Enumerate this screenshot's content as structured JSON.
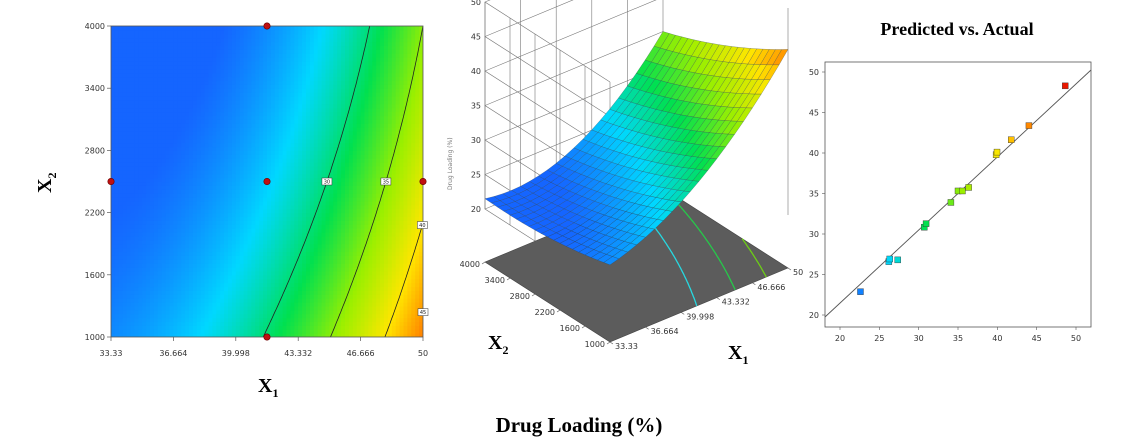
{
  "figure_caption": "Drug Loading (%)",
  "chart_data": [
    {
      "type": "heatmap",
      "subtype": "contour",
      "xlabel": "X",
      "xlabel_sub": "1",
      "ylabel": "X",
      "ylabel_sub": "2",
      "xlim": [
        33.33,
        50
      ],
      "ylim": [
        1000,
        4000
      ],
      "x_ticks": [
        "33.33",
        "36.664",
        "39.998",
        "43.332",
        "46.666",
        "50"
      ],
      "y_ticks": [
        "1000",
        "1600",
        "2200",
        "2800",
        "3400",
        "4000"
      ],
      "colormap": [
        "#1565ff",
        "#00d8ff",
        "#00e050",
        "#9bef00",
        "#ffe600",
        "#ff7000",
        "#e30000"
      ],
      "contours": [
        {
          "level": 30,
          "label": "30"
        },
        {
          "level": 35,
          "label": "35"
        },
        {
          "level": 40,
          "label": "40"
        },
        {
          "level": 45,
          "label": "45"
        }
      ],
      "design_points": [
        {
          "x": 33.33,
          "y": 2500
        },
        {
          "x": 41.665,
          "y": 2500
        },
        {
          "x": 50,
          "y": 2500
        },
        {
          "x": 41.665,
          "y": 1000
        },
        {
          "x": 41.665,
          "y": 4000
        }
      ]
    },
    {
      "type": "surface",
      "xlabel": "X",
      "xlabel_sub": "1",
      "ylabel": "X",
      "ylabel_sub": "2",
      "zlim": [
        20,
        50
      ],
      "x_ticks": [
        "33.33",
        "36.664",
        "39.998",
        "43.332",
        "46.666",
        "50"
      ],
      "y_ticks": [
        "1000",
        "1600",
        "2200",
        "2800",
        "3400",
        "4000"
      ],
      "z_ticks": [
        "20",
        "25",
        "30",
        "35",
        "40",
        "45",
        "50"
      ],
      "zlabel": "Drug Loading (%)"
    },
    {
      "type": "scatter",
      "title": "Predicted vs. Actual",
      "xlim": [
        20,
        50
      ],
      "ylim": [
        20,
        50
      ],
      "x_ticks": [
        "20",
        "25",
        "30",
        "35",
        "40",
        "45",
        "50"
      ],
      "y_ticks": [
        "20",
        "25",
        "30",
        "35",
        "40",
        "45",
        "50"
      ],
      "reference_line": {
        "from": [
          20,
          20
        ],
        "to": [
          50,
          50
        ]
      },
      "points": [
        {
          "actual": 24.0,
          "predicted": 24.0
        },
        {
          "actual": 27.2,
          "predicted": 27.4
        },
        {
          "actual": 27.3,
          "predicted": 27.7
        },
        {
          "actual": 28.2,
          "predicted": 27.6
        },
        {
          "actual": 31.2,
          "predicted": 31.3
        },
        {
          "actual": 31.4,
          "predicted": 31.7
        },
        {
          "actual": 34.2,
          "predicted": 34.1
        },
        {
          "actual": 35.0,
          "predicted": 35.4
        },
        {
          "actual": 35.5,
          "predicted": 35.4
        },
        {
          "actual": 36.2,
          "predicted": 35.8
        },
        {
          "actual": 39.3,
          "predicted": 39.5
        },
        {
          "actual": 39.4,
          "predicted": 39.8
        },
        {
          "actual": 41.0,
          "predicted": 41.2
        },
        {
          "actual": 43.0,
          "predicted": 42.8
        },
        {
          "actual": 47.1,
          "predicted": 47.3
        }
      ]
    }
  ]
}
